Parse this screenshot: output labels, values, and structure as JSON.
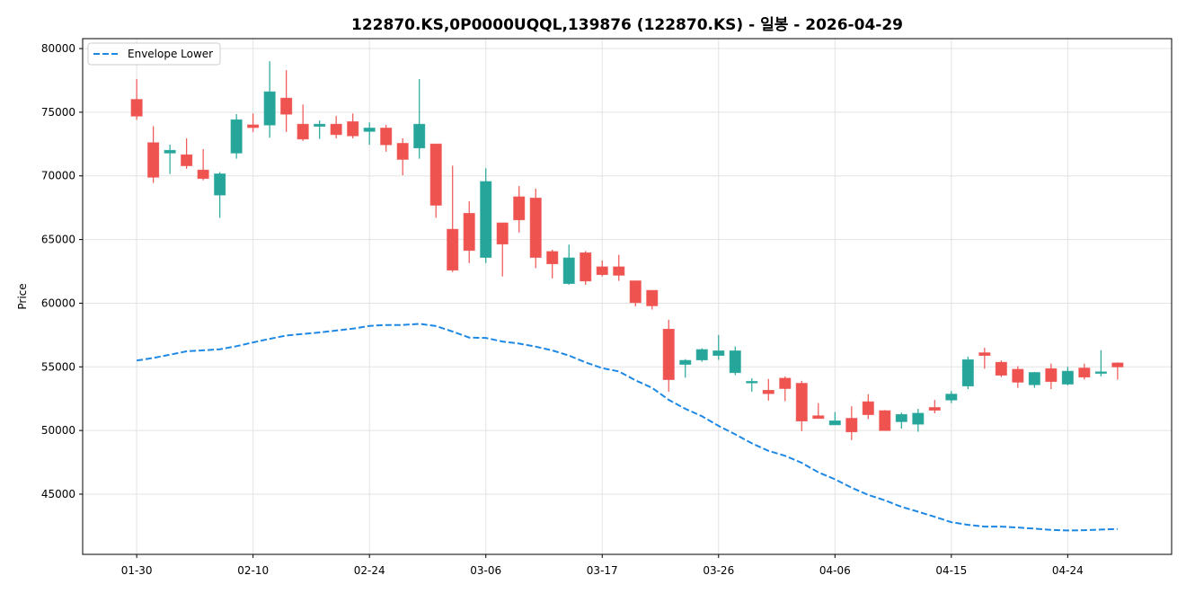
{
  "chart_data": {
    "type": "candlestick",
    "title": "122870.KS,0P0000UQQL,139876 (122870.KS) - 일봉 - 2026-04-29",
    "xlabel": "",
    "ylabel": "Price",
    "ylim": [
      40270,
      80780
    ],
    "xlim": [
      -3.25,
      62.25
    ],
    "grid": true,
    "legend_position": "top-left",
    "colors": {
      "up": "#26a69a",
      "down": "#ef5350",
      "envelope_lower": "#1e88e5"
    },
    "y_ticks": [
      45000,
      50000,
      55000,
      60000,
      65000,
      70000,
      75000,
      80000
    ],
    "x_ticks": [
      {
        "label": "01-30",
        "index": 0
      },
      {
        "label": "02-10",
        "index": 7
      },
      {
        "label": "02-24",
        "index": 14
      },
      {
        "label": "03-06",
        "index": 21
      },
      {
        "label": "03-17",
        "index": 28
      },
      {
        "label": "03-26",
        "index": 35
      },
      {
        "label": "04-06",
        "index": 42
      },
      {
        "label": "04-15",
        "index": 49
      },
      {
        "label": "04-24",
        "index": 56
      }
    ],
    "ohlc_columns": [
      "open",
      "high",
      "low",
      "close"
    ],
    "candles": [
      [
        76000,
        77600,
        74400,
        74700
      ],
      [
        72600,
        73900,
        69450,
        69900
      ],
      [
        71800,
        72450,
        70150,
        72000
      ],
      [
        71650,
        72950,
        70550,
        70800
      ],
      [
        70450,
        72100,
        69650,
        69800
      ],
      [
        68500,
        70300,
        66700,
        70150
      ],
      [
        71800,
        74850,
        71350,
        74400
      ],
      [
        74000,
        74900,
        73450,
        73800
      ],
      [
        74000,
        79000,
        73000,
        76600
      ],
      [
        76100,
        78300,
        73450,
        74850
      ],
      [
        74050,
        75600,
        72750,
        72900
      ],
      [
        73900,
        74350,
        72900,
        74050
      ],
      [
        74050,
        74700,
        72950,
        73250
      ],
      [
        74250,
        74900,
        72950,
        73150
      ],
      [
        73500,
        74200,
        72450,
        73750
      ],
      [
        73750,
        74000,
        71900,
        72450
      ],
      [
        72550,
        72950,
        70050,
        71300
      ],
      [
        72200,
        77600,
        71350,
        74050
      ],
      [
        72500,
        72500,
        66700,
        67700
      ],
      [
        65800,
        70800,
        62450,
        62600
      ],
      [
        67050,
        68000,
        63150,
        64150
      ],
      [
        63600,
        70600,
        63150,
        69550
      ],
      [
        66300,
        66300,
        62100,
        64650
      ],
      [
        68350,
        69200,
        65550,
        66550
      ],
      [
        68250,
        69000,
        62750,
        63600
      ],
      [
        64050,
        64200,
        61950,
        63100
      ],
      [
        61550,
        64600,
        61450,
        63550
      ],
      [
        63950,
        64100,
        61450,
        61750
      ],
      [
        62850,
        63350,
        62100,
        62250
      ],
      [
        62850,
        63800,
        61750,
        62200
      ],
      [
        61750,
        61750,
        59750,
        60050
      ],
      [
        61000,
        61000,
        59500,
        59800
      ],
      [
        57950,
        58700,
        53050,
        54000
      ],
      [
        55200,
        55600,
        54150,
        55500
      ],
      [
        55550,
        56450,
        55400,
        56350
      ],
      [
        55900,
        57500,
        55550,
        56250
      ],
      [
        54550,
        56600,
        54350,
        56250
      ],
      [
        53800,
        54100,
        53050,
        53850
      ],
      [
        53150,
        54050,
        52350,
        52900
      ],
      [
        54100,
        54250,
        52300,
        53300
      ],
      [
        53700,
        53900,
        49950,
        50750
      ],
      [
        51150,
        52150,
        50950,
        50950
      ],
      [
        50450,
        51450,
        50450,
        50750
      ],
      [
        50950,
        51900,
        49250,
        49900
      ],
      [
        52250,
        52850,
        50900,
        51250
      ],
      [
        51550,
        51600,
        50000,
        50000
      ],
      [
        50700,
        51400,
        50150,
        51250
      ],
      [
        50500,
        51700,
        49900,
        51350
      ],
      [
        51800,
        52400,
        51350,
        51600
      ],
      [
        52400,
        53100,
        52150,
        52850
      ],
      [
        53500,
        55800,
        53250,
        55550
      ],
      [
        56100,
        56500,
        54850,
        55900
      ],
      [
        55350,
        55500,
        54200,
        54350
      ],
      [
        54800,
        55050,
        53350,
        53800
      ],
      [
        53600,
        54600,
        53350,
        54550
      ],
      [
        54850,
        55250,
        53250,
        53850
      ],
      [
        53650,
        55000,
        53550,
        54650
      ],
      [
        54900,
        55250,
        54000,
        54200
      ],
      [
        54500,
        56300,
        54250,
        54600
      ],
      [
        55300,
        55350,
        54000,
        55000
      ]
    ],
    "series": [
      {
        "name": "Envelope Lower",
        "style": "dashed",
        "values": [
          55490,
          55700,
          55950,
          56220,
          56300,
          56380,
          56620,
          56920,
          57200,
          57460,
          57580,
          57700,
          57850,
          58000,
          58220,
          58290,
          58290,
          58380,
          58200,
          57770,
          57300,
          57270,
          56990,
          56830,
          56590,
          56290,
          55890,
          55350,
          54900,
          54640,
          53940,
          53350,
          52410,
          51700,
          51120,
          50360,
          49700,
          48990,
          48400,
          48010,
          47460,
          46710,
          46170,
          45510,
          44940,
          44520,
          44000,
          43620,
          43220,
          42800,
          42590,
          42450,
          42450,
          42380,
          42290,
          42190,
          42150,
          42170,
          42220,
          42260
        ]
      }
    ]
  }
}
